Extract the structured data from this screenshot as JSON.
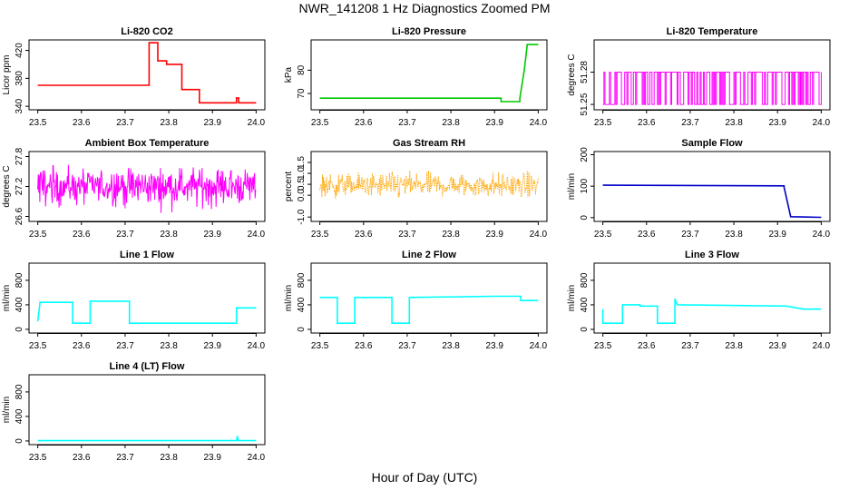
{
  "figure": {
    "title": "NWR_141208  1 Hz Diagnostics Zoomed PM",
    "xlabel": "Hour of Day (UTC)"
  },
  "chart_data": [
    {
      "type": "line",
      "title": "Li-820 CO2",
      "ylabel": "Licor ppm",
      "color": "#ff0000",
      "xlim": [
        23.48,
        24.02
      ],
      "ylim": [
        335,
        435
      ],
      "xticks": [
        "23.5",
        "23.6",
        "23.7",
        "23.8",
        "23.9",
        "24.0"
      ],
      "yticks": [
        "340",
        "380",
        "420"
      ],
      "x": [
        23.5,
        23.755,
        23.755,
        23.775,
        23.775,
        23.795,
        23.795,
        23.83,
        23.83,
        23.87,
        23.87,
        23.955,
        23.955,
        23.96,
        23.96,
        24.0
      ],
      "y": [
        370,
        370,
        431,
        431,
        405,
        405,
        400,
        400,
        364,
        364,
        345,
        345,
        352,
        352,
        345,
        345
      ]
    },
    {
      "type": "line",
      "title": "Li-820 Pressure",
      "ylabel": "kPa",
      "color": "#00c800",
      "xlim": [
        23.48,
        24.02
      ],
      "ylim": [
        63,
        93
      ],
      "xticks": [
        "23.5",
        "23.6",
        "23.7",
        "23.8",
        "23.9",
        "24.0"
      ],
      "yticks": [
        "70",
        "80"
      ],
      "x": [
        23.5,
        23.915,
        23.915,
        23.958,
        23.958,
        23.968,
        23.975,
        23.99,
        24.0
      ],
      "y": [
        68.0,
        68.0,
        66.5,
        66.5,
        68.0,
        80.0,
        91.0,
        91.0,
        91.0
      ]
    },
    {
      "type": "line",
      "title": "Li-820 Temperature",
      "ylabel": "degrees C",
      "color": "#ff00ff",
      "xlim": [
        23.48,
        24.02
      ],
      "ylim": [
        51.245,
        51.31
      ],
      "xticks": [
        "23.5",
        "23.6",
        "23.7",
        "23.8",
        "23.9",
        "24.0"
      ],
      "yticks": [
        "51.25",
        "51.28"
      ],
      "yhigh": 51.28,
      "ylow": 51.25,
      "noise": "binary"
    },
    {
      "type": "line",
      "title": "Ambient Box Temperature",
      "ylabel": "degrees C",
      "color": "#ff00ff",
      "xlim": [
        23.48,
        24.02
      ],
      "ylim": [
        26.5,
        27.9
      ],
      "xticks": [
        "23.5",
        "23.6",
        "23.7",
        "23.8",
        "23.9",
        "24.0"
      ],
      "yticks": [
        "26.6",
        "27.2",
        "27.8"
      ],
      "mean": 27.2,
      "spread": 0.3,
      "noise": "gaussian"
    },
    {
      "type": "scatter",
      "title": "Gas Stream RH",
      "ylabel": "percent",
      "color": "#ffa500",
      "xlim": [
        23.48,
        24.02
      ],
      "ylim": [
        -1.2,
        2.0
      ],
      "xticks": [
        "23.5",
        "23.6",
        "23.7",
        "23.8",
        "23.9",
        "24.0"
      ],
      "yticks": [
        "-1.0",
        "0.0",
        "0.5",
        "1.0",
        "1.5"
      ],
      "mean": 0.45,
      "spread": 0.45,
      "noise": "gaussian"
    },
    {
      "type": "line",
      "title": "Sample Flow",
      "ylabel": "ml/min",
      "color": "#0000c8",
      "xlim": [
        23.48,
        24.02
      ],
      "ylim": [
        -12,
        210
      ],
      "xticks": [
        "23.5",
        "23.6",
        "23.7",
        "23.8",
        "23.9",
        "24.0"
      ],
      "yticks": [
        "0",
        "100",
        "200"
      ],
      "x": [
        23.5,
        23.915,
        23.915,
        23.93,
        24.0
      ],
      "y": [
        103,
        101,
        97,
        3,
        1
      ]
    },
    {
      "type": "line",
      "title": "Line 1 Flow",
      "ylabel": "ml/min",
      "color": "#00ffff",
      "xlim": [
        23.48,
        24.02
      ],
      "ylim": [
        -60,
        1080
      ],
      "xticks": [
        "23.5",
        "23.6",
        "23.7",
        "23.8",
        "23.9",
        "24.0"
      ],
      "yticks": [
        "0",
        "400",
        "800"
      ],
      "x": [
        23.5,
        23.505,
        23.505,
        23.58,
        23.58,
        23.62,
        23.62,
        23.71,
        23.71,
        23.955,
        23.955,
        24.0
      ],
      "y": [
        130,
        420,
        440,
        440,
        100,
        100,
        460,
        460,
        100,
        100,
        350,
        350
      ]
    },
    {
      "type": "line",
      "title": "Line 2 Flow",
      "ylabel": "ml/min",
      "color": "#00ffff",
      "xlim": [
        23.48,
        24.02
      ],
      "ylim": [
        -60,
        1080
      ],
      "xticks": [
        "23.5",
        "23.6",
        "23.7",
        "23.8",
        "23.9",
        "24.0"
      ],
      "yticks": [
        "0",
        "400",
        "800"
      ],
      "x": [
        23.5,
        23.54,
        23.54,
        23.58,
        23.58,
        23.665,
        23.665,
        23.705,
        23.705,
        23.9,
        23.96,
        23.96,
        24.0
      ],
      "y": [
        520,
        520,
        100,
        100,
        520,
        520,
        100,
        100,
        520,
        540,
        540,
        470,
        470
      ]
    },
    {
      "type": "line",
      "title": "Line 3 Flow",
      "ylabel": "ml/min",
      "color": "#00ffff",
      "xlim": [
        23.48,
        24.02
      ],
      "ylim": [
        -60,
        1080
      ],
      "xticks": [
        "23.5",
        "23.6",
        "23.7",
        "23.8",
        "23.9",
        "24.0"
      ],
      "yticks": [
        "0",
        "400",
        "800"
      ],
      "x": [
        23.5,
        23.5,
        23.545,
        23.545,
        23.585,
        23.585,
        23.625,
        23.625,
        23.665,
        23.665,
        23.67,
        23.92,
        23.96,
        24.0
      ],
      "y": [
        330,
        100,
        100,
        400,
        400,
        380,
        380,
        100,
        100,
        500,
        400,
        380,
        330,
        330
      ]
    },
    {
      "type": "line",
      "title": "Line 4 (LT) Flow",
      "ylabel": "ml/min",
      "color": "#00ffff",
      "xlim": [
        23.48,
        24.02
      ],
      "ylim": [
        -60,
        1080
      ],
      "xticks": [
        "23.5",
        "23.6",
        "23.7",
        "23.8",
        "23.9",
        "24.0"
      ],
      "yticks": [
        "0",
        "400",
        "800"
      ],
      "x": [
        23.5,
        23.955,
        23.957,
        23.959,
        24.0
      ],
      "y": [
        5,
        5,
        80,
        5,
        5
      ]
    }
  ]
}
